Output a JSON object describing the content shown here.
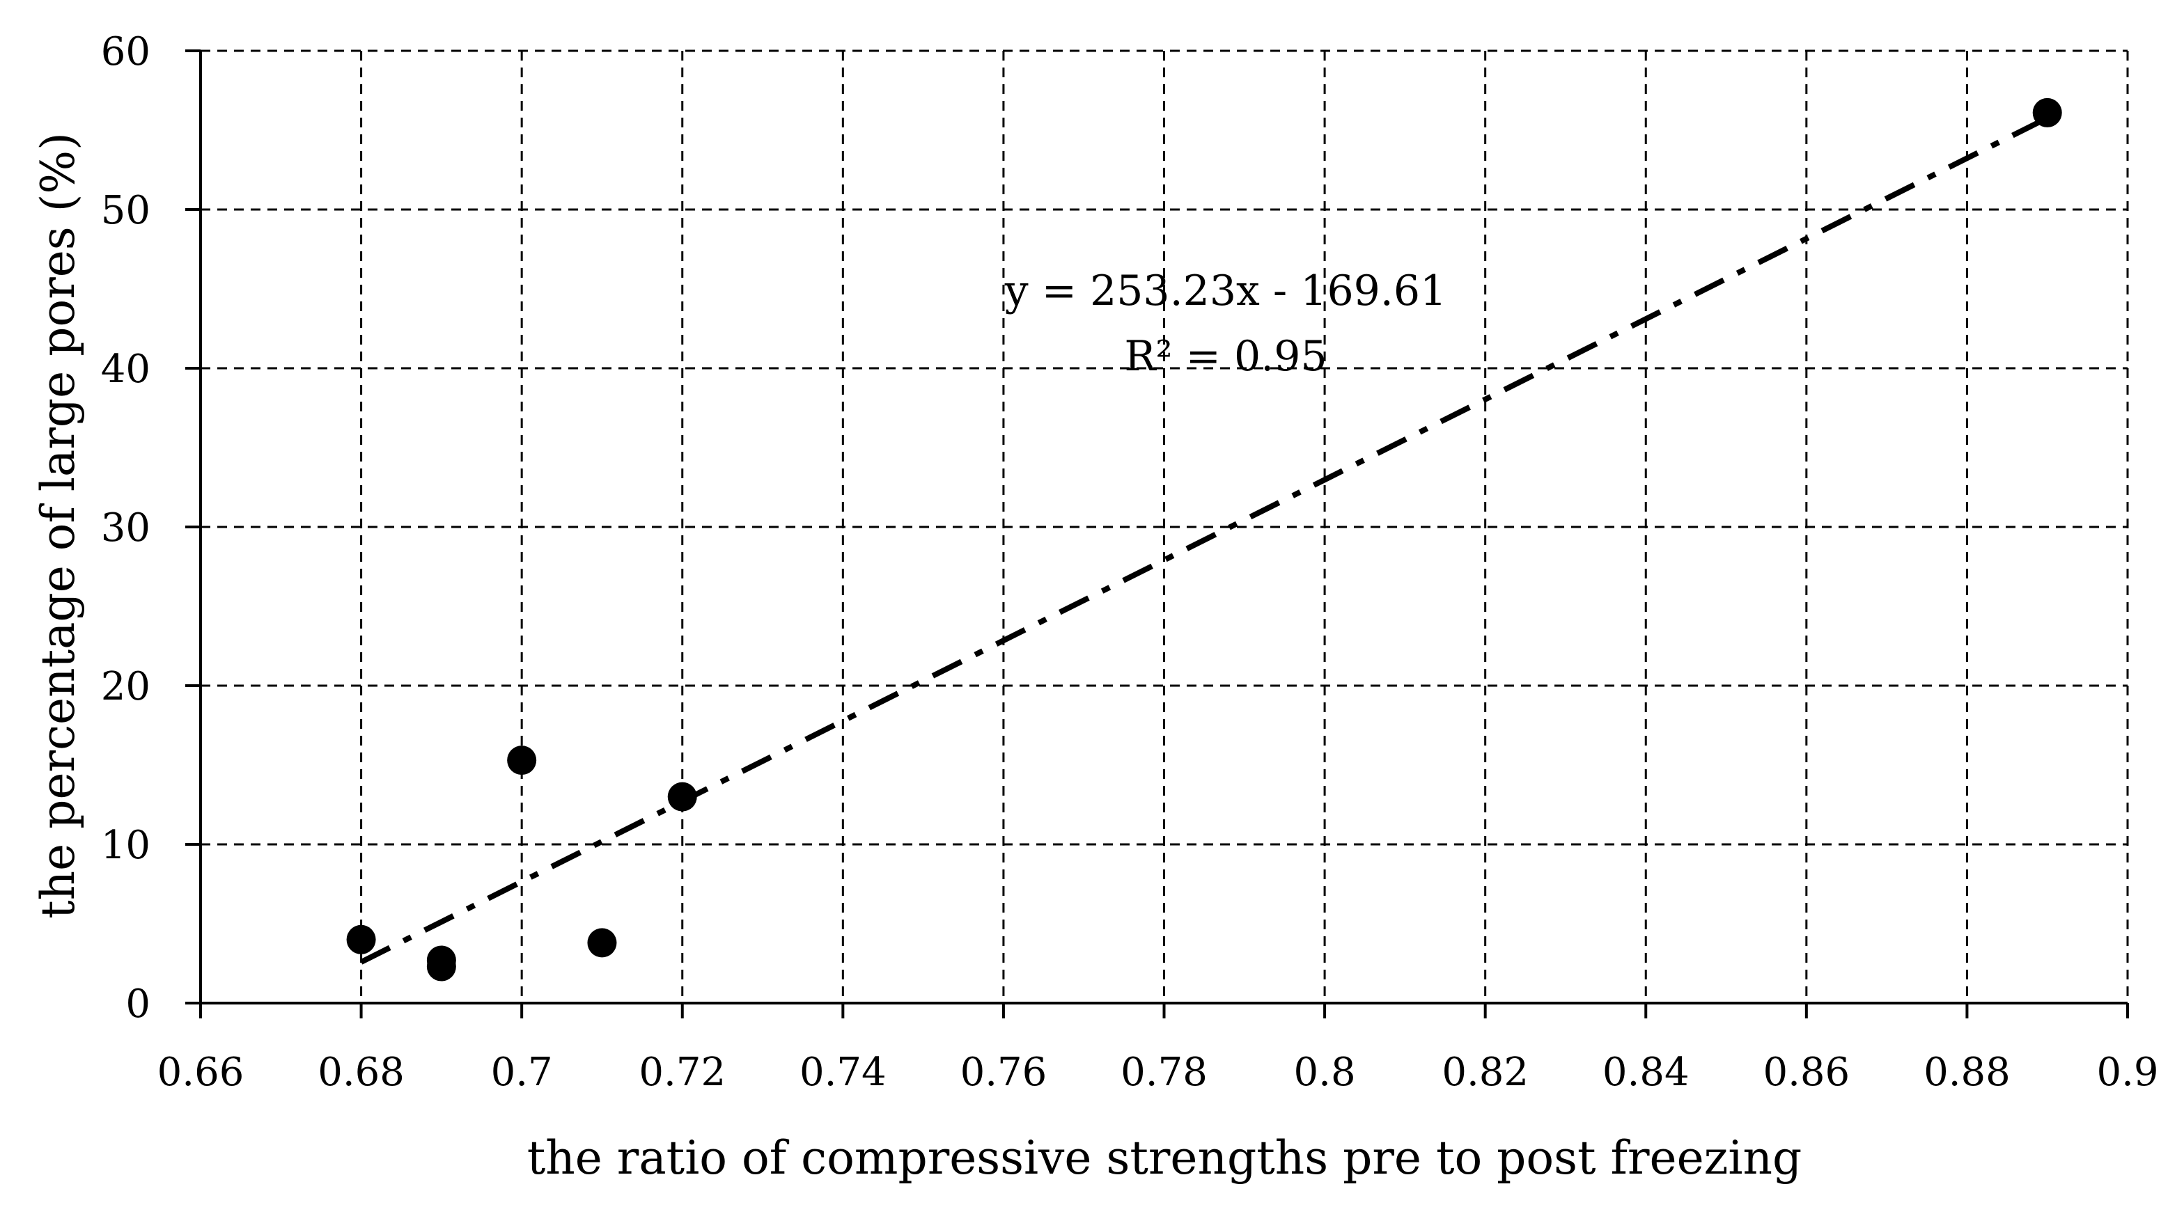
{
  "chart_data": {
    "type": "scatter",
    "title": "",
    "xlabel": "the ratio of compressive strengths pre to post freezing",
    "ylabel": "the percentage of large pores (%)",
    "xlim": [
      0.66,
      0.9
    ],
    "ylim": [
      0,
      60
    ],
    "xticks": [
      0.66,
      0.68,
      0.7,
      0.72,
      0.74,
      0.76,
      0.78,
      0.8,
      0.82,
      0.84,
      0.86,
      0.88,
      0.9
    ],
    "xtick_labels": [
      "0.66",
      "0.68",
      "0.7",
      "0.72",
      "0.74",
      "0.76",
      "0.78",
      "0.8",
      "0.82",
      "0.84",
      "0.86",
      "0.88",
      "0.9"
    ],
    "yticks": [
      0,
      10,
      20,
      30,
      40,
      50,
      60
    ],
    "ytick_labels": [
      "0",
      "10",
      "20",
      "30",
      "40",
      "50",
      "60"
    ],
    "grid": true,
    "series": [
      {
        "name": "data",
        "points": [
          {
            "x": 0.68,
            "y": 4.0
          },
          {
            "x": 0.69,
            "y": 2.7
          },
          {
            "x": 0.69,
            "y": 2.3
          },
          {
            "x": 0.7,
            "y": 15.3
          },
          {
            "x": 0.71,
            "y": 3.8
          },
          {
            "x": 0.72,
            "y": 13.0
          },
          {
            "x": 0.89,
            "y": 56.1
          }
        ]
      }
    ],
    "trendline": {
      "type": "linear",
      "slope": 253.23,
      "intercept": -169.61,
      "x_range": [
        0.68,
        0.89
      ],
      "equation_label": "y = 253.23x - 169.61",
      "r2_label": "R² = 0.95"
    }
  }
}
